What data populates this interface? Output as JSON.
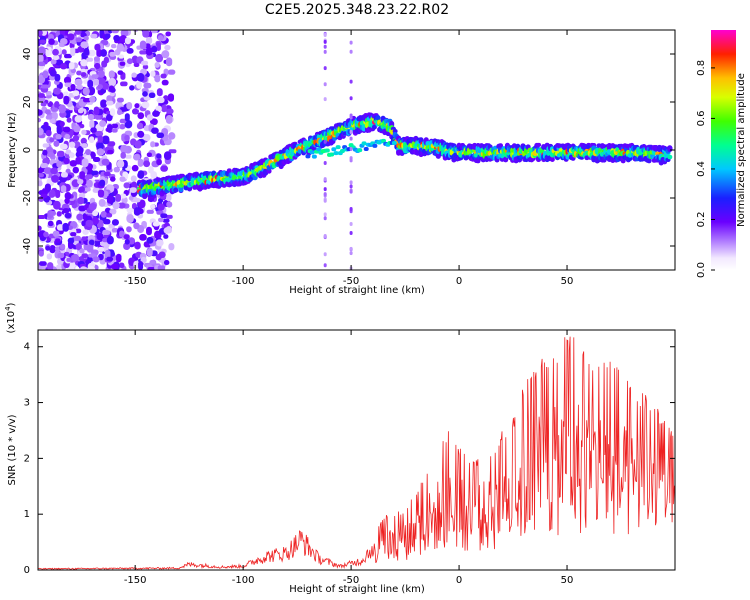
{
  "chart_data": [
    {
      "type": "heatmap",
      "title": "C2E5.2025.348.23.22.R02",
      "xlabel": "Height of straight line (km)",
      "ylabel": "Frequency (Hz)",
      "xlim": [
        -195,
        100
      ],
      "ylim": [
        -50,
        50
      ],
      "xticks": [
        -150,
        -100,
        -50,
        0,
        50
      ],
      "xtick_labels": [
        "-150",
        "-100",
        "-50",
        "0",
        "50"
      ],
      "yticks": [
        -40,
        -20,
        0,
        20,
        40
      ],
      "ytick_labels": [
        "-40",
        "-20",
        "0",
        "20",
        "40"
      ],
      "colorbar": {
        "label": "Normalized spectral amplitude",
        "range": [
          0,
          0.95
        ],
        "ticks": [
          0,
          0.2,
          0.4,
          0.6,
          0.8
        ],
        "tick_labels": [
          "0.0",
          "0.2",
          "0.4",
          "0.6",
          "0.8"
        ]
      },
      "ridge": [
        {
          "x": -145,
          "y": -16
        },
        {
          "x": -130,
          "y": -14
        },
        {
          "x": -115,
          "y": -12
        },
        {
          "x": -100,
          "y": -11
        },
        {
          "x": -90,
          "y": -7
        },
        {
          "x": -80,
          "y": -2
        },
        {
          "x": -70,
          "y": 2
        },
        {
          "x": -60,
          "y": 6
        },
        {
          "x": -50,
          "y": 10
        },
        {
          "x": -40,
          "y": 12
        },
        {
          "x": -32,
          "y": 10
        },
        {
          "x": -28,
          "y": 2
        },
        {
          "x": -20,
          "y": 2
        },
        {
          "x": -10,
          "y": 1
        },
        {
          "x": 0,
          "y": -1
        },
        {
          "x": 20,
          "y": -1
        },
        {
          "x": 40,
          "y": -1
        },
        {
          "x": 60,
          "y": -1
        },
        {
          "x": 80,
          "y": -1
        },
        {
          "x": 97,
          "y": -2
        }
      ]
    },
    {
      "type": "line",
      "xlabel": "Height of straight line (km)",
      "ylabel": "SNR (10 * v/v)",
      "y_multiplier": "(x10",
      "y_multiplier_exp": "4",
      "y_multiplier_close": ")",
      "xlim": [
        -195,
        100
      ],
      "ylim": [
        0,
        4.3
      ],
      "xticks": [
        -150,
        -100,
        -50,
        0,
        50
      ],
      "xtick_labels": [
        "-150",
        "-100",
        "-50",
        "0",
        "50"
      ],
      "yticks": [
        0,
        1,
        2,
        3,
        4
      ],
      "ytick_labels": [
        "0",
        "1",
        "2",
        "3",
        "4"
      ],
      "series": [
        {
          "name": "SNR",
          "color": "#ee2222",
          "envelope": [
            {
              "x": -195,
              "y": 0.03
            },
            {
              "x": -130,
              "y": 0.05
            },
            {
              "x": -125,
              "y": 0.15
            },
            {
              "x": -110,
              "y": 0.08
            },
            {
              "x": -100,
              "y": 0.1
            },
            {
              "x": -90,
              "y": 0.35
            },
            {
              "x": -80,
              "y": 0.45
            },
            {
              "x": -73,
              "y": 0.8
            },
            {
              "x": -65,
              "y": 0.3
            },
            {
              "x": -55,
              "y": 0.1
            },
            {
              "x": -45,
              "y": 0.25
            },
            {
              "x": -35,
              "y": 1.0
            },
            {
              "x": -25,
              "y": 1.1
            },
            {
              "x": -15,
              "y": 1.8
            },
            {
              "x": -5,
              "y": 2.5
            },
            {
              "x": 5,
              "y": 2.0
            },
            {
              "x": 15,
              "y": 2.2
            },
            {
              "x": 25,
              "y": 2.8
            },
            {
              "x": 35,
              "y": 3.8
            },
            {
              "x": 45,
              "y": 3.9
            },
            {
              "x": 50,
              "y": 4.3
            },
            {
              "x": 60,
              "y": 4.0
            },
            {
              "x": 70,
              "y": 3.8
            },
            {
              "x": 80,
              "y": 3.3
            },
            {
              "x": 90,
              "y": 3.1
            },
            {
              "x": 100,
              "y": 2.4
            }
          ]
        }
      ]
    }
  ],
  "colors": {
    "line": "#ee2222",
    "axis": "#000000",
    "background": "#ffffff"
  }
}
